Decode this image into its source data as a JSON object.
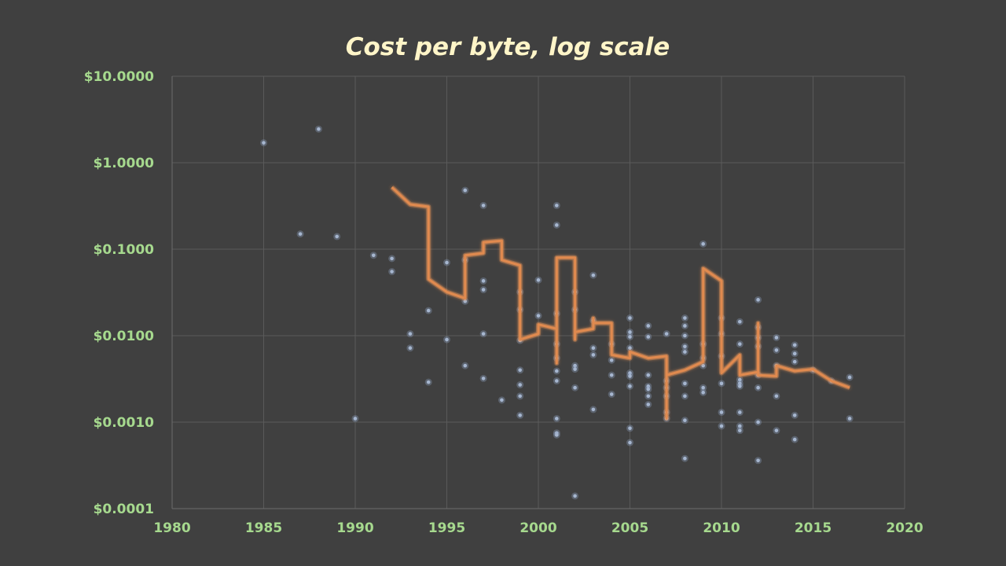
{
  "chart_data": {
    "type": "scatter",
    "title": "Cost per byte, log scale",
    "xlabel": "",
    "ylabel": "",
    "xlim": [
      1980,
      2020
    ],
    "ylim": [
      0.0001,
      10
    ],
    "y_scale": "log",
    "grid": true,
    "x_ticks": [
      1980,
      1985,
      1990,
      1995,
      2000,
      2005,
      2010,
      2015,
      2020
    ],
    "x_tick_labels": [
      "1980",
      "1985",
      "1990",
      "1995",
      "2000",
      "2005",
      "2010",
      "2015",
      "2020"
    ],
    "y_ticks": [
      0.0001,
      0.001,
      0.01,
      0.1,
      1,
      10
    ],
    "y_tick_labels": [
      "$0.0001",
      "$0.0010",
      "$0.0100",
      "$0.1000",
      "$1.0000",
      "$10.0000"
    ],
    "series": [
      {
        "type": "scatter",
        "points": [
          [
            1985,
            1.7
          ],
          [
            1987,
            0.15
          ],
          [
            1988,
            2.45
          ],
          [
            1989,
            0.14
          ],
          [
            1990,
            0.0011
          ],
          [
            1991,
            0.085
          ],
          [
            1992,
            0.078
          ],
          [
            1992,
            0.055
          ],
          [
            1993,
            0.0105
          ],
          [
            1993,
            0.0072
          ],
          [
            1994,
            0.0195
          ],
          [
            1994,
            0.0029
          ],
          [
            1995,
            0.07
          ],
          [
            1995,
            0.009
          ],
          [
            1996,
            0.48
          ],
          [
            1996,
            0.0045
          ],
          [
            1996,
            0.075
          ],
          [
            1996,
            0.025
          ],
          [
            1997,
            0.32
          ],
          [
            1997,
            0.043
          ],
          [
            1997,
            0.034
          ],
          [
            1997,
            0.0105
          ],
          [
            1997,
            0.0032
          ],
          [
            1998,
            0.0018
          ],
          [
            1999,
            0.032
          ],
          [
            1999,
            0.02
          ],
          [
            1999,
            0.0088
          ],
          [
            1999,
            0.004
          ],
          [
            1999,
            0.0027
          ],
          [
            1999,
            0.002
          ],
          [
            1999,
            0.0012
          ],
          [
            2000,
            0.044
          ],
          [
            2000,
            0.017
          ],
          [
            2001,
            0.32
          ],
          [
            2001,
            0.19
          ],
          [
            2001,
            0.018
          ],
          [
            2001,
            0.008
          ],
          [
            2001,
            0.0055
          ],
          [
            2001,
            0.0039
          ],
          [
            2001,
            0.003
          ],
          [
            2001,
            0.0011
          ],
          [
            2001,
            0.00075
          ],
          [
            2001,
            0.00071
          ],
          [
            2002,
            0.032
          ],
          [
            2002,
            0.02
          ],
          [
            2002,
            0.0045
          ],
          [
            2002,
            0.0041
          ],
          [
            2002,
            0.0025
          ],
          [
            2002,
            0.00014
          ],
          [
            2003,
            0.05
          ],
          [
            2003,
            0.015
          ],
          [
            2003,
            0.0072
          ],
          [
            2003,
            0.006
          ],
          [
            2003,
            0.0014
          ],
          [
            2004,
            0.008
          ],
          [
            2004,
            0.0052
          ],
          [
            2004,
            0.0035
          ],
          [
            2004,
            0.0021
          ],
          [
            2005,
            0.016
          ],
          [
            2005,
            0.011
          ],
          [
            2005,
            0.0097
          ],
          [
            2005,
            0.0072
          ],
          [
            2005,
            0.0037
          ],
          [
            2005,
            0.0034
          ],
          [
            2005,
            0.0026
          ],
          [
            2005,
            0.00085
          ],
          [
            2005,
            0.00058
          ],
          [
            2006,
            0.013
          ],
          [
            2006,
            0.0097
          ],
          [
            2006,
            0.0035
          ],
          [
            2006,
            0.0026
          ],
          [
            2006,
            0.0024
          ],
          [
            2006,
            0.002
          ],
          [
            2006,
            0.0016
          ],
          [
            2007,
            0.0105
          ],
          [
            2007,
            0.003
          ],
          [
            2007,
            0.0025
          ],
          [
            2007,
            0.002
          ],
          [
            2007,
            0.0013
          ],
          [
            2007,
            0.0011
          ],
          [
            2008,
            0.016
          ],
          [
            2008,
            0.013
          ],
          [
            2008,
            0.01
          ],
          [
            2008,
            0.0075
          ],
          [
            2008,
            0.0065
          ],
          [
            2008,
            0.0028
          ],
          [
            2008,
            0.002
          ],
          [
            2008,
            0.00105
          ],
          [
            2008,
            0.00038
          ],
          [
            2009,
            0.115
          ],
          [
            2009,
            0.008
          ],
          [
            2009,
            0.0055
          ],
          [
            2009,
            0.0045
          ],
          [
            2009,
            0.0025
          ],
          [
            2009,
            0.0022
          ],
          [
            2010,
            0.016
          ],
          [
            2010,
            0.0105
          ],
          [
            2010,
            0.0058
          ],
          [
            2010,
            0.0028
          ],
          [
            2010,
            0.0013
          ],
          [
            2010,
            0.0009
          ],
          [
            2011,
            0.0145
          ],
          [
            2011,
            0.008
          ],
          [
            2011,
            0.0031
          ],
          [
            2011,
            0.0028
          ],
          [
            2011,
            0.0026
          ],
          [
            2011,
            0.0013
          ],
          [
            2011,
            0.0009
          ],
          [
            2011,
            0.0008
          ],
          [
            2012,
            0.026
          ],
          [
            2012,
            0.0125
          ],
          [
            2012,
            0.0095
          ],
          [
            2012,
            0.0075
          ],
          [
            2012,
            0.0035
          ],
          [
            2012,
            0.0025
          ],
          [
            2012,
            0.001
          ],
          [
            2012,
            0.00036
          ],
          [
            2013,
            0.0095
          ],
          [
            2013,
            0.0068
          ],
          [
            2013,
            0.0045
          ],
          [
            2013,
            0.002
          ],
          [
            2013,
            0.0008
          ],
          [
            2014,
            0.0078
          ],
          [
            2014,
            0.0062
          ],
          [
            2014,
            0.005
          ],
          [
            2014,
            0.0012
          ],
          [
            2014,
            0.00063
          ],
          [
            2015,
            0.004
          ],
          [
            2016,
            0.003
          ],
          [
            2017,
            0.0033
          ],
          [
            2017,
            0.0011
          ]
        ]
      },
      {
        "type": "line",
        "points": [
          [
            1992,
            0.52
          ],
          [
            1993,
            0.33
          ],
          [
            1994,
            0.31
          ],
          [
            1994,
            0.045
          ],
          [
            1995,
            0.032
          ],
          [
            1996,
            0.027
          ],
          [
            1996,
            0.085
          ],
          [
            1997,
            0.09
          ],
          [
            1997,
            0.12
          ],
          [
            1998,
            0.125
          ],
          [
            1998,
            0.075
          ],
          [
            1999,
            0.065
          ],
          [
            1999,
            0.009
          ],
          [
            2000,
            0.0105
          ],
          [
            2000,
            0.0135
          ],
          [
            2001,
            0.012
          ],
          [
            2001,
            0.0048
          ],
          [
            2001,
            0.08
          ],
          [
            2002,
            0.08
          ],
          [
            2002,
            0.009
          ],
          [
            2002,
            0.011
          ],
          [
            2003,
            0.012
          ],
          [
            2003,
            0.016
          ],
          [
            2003,
            0.014
          ],
          [
            2004,
            0.014
          ],
          [
            2004,
            0.006
          ],
          [
            2005,
            0.0055
          ],
          [
            2005,
            0.0065
          ],
          [
            2006,
            0.0055
          ],
          [
            2007,
            0.0058
          ],
          [
            2007,
            0.0011
          ],
          [
            2007,
            0.0035
          ],
          [
            2008,
            0.004
          ],
          [
            2009,
            0.005
          ],
          [
            2009,
            0.06
          ],
          [
            2010,
            0.043
          ],
          [
            2010,
            0.0037
          ],
          [
            2011,
            0.006
          ],
          [
            2011,
            0.0035
          ],
          [
            2012,
            0.0038
          ],
          [
            2012,
            0.014
          ],
          [
            2012,
            0.0035
          ],
          [
            2013,
            0.0034
          ],
          [
            2013,
            0.0045
          ],
          [
            2014,
            0.0039
          ],
          [
            2015,
            0.0041
          ],
          [
            2016,
            0.003
          ],
          [
            2017,
            0.0025
          ]
        ]
      }
    ]
  },
  "colors": {
    "background": "#404040",
    "grid": "#5a5a5a",
    "axis": "#6c6c6c",
    "title": "#fff5c8",
    "tick_label": "#a6d98e",
    "line": "#e08a4f",
    "line_glow": "#f0a063",
    "point": "#a6b6cf",
    "point_glow": "#8fa3c4"
  }
}
